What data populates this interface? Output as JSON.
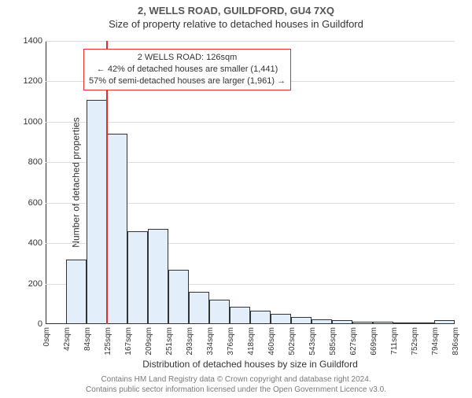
{
  "header": {
    "address": "2, WELLS ROAD, GUILDFORD, GU4 7XQ",
    "subtitle": "Size of property relative to detached houses in Guildford"
  },
  "chart": {
    "type": "histogram",
    "ylabel": "Number of detached properties",
    "xlabel": "Distribution of detached houses by size in Guildford",
    "ylim": [
      0,
      1400
    ],
    "ytick_step": 200,
    "xticks_labels": [
      "0sqm",
      "42sqm",
      "84sqm",
      "125sqm",
      "167sqm",
      "209sqm",
      "251sqm",
      "293sqm",
      "334sqm",
      "376sqm",
      "418sqm",
      "460sqm",
      "502sqm",
      "543sqm",
      "585sqm",
      "627sqm",
      "669sqm",
      "711sqm",
      "752sqm",
      "794sqm",
      "836sqm"
    ],
    "values": [
      0,
      320,
      1110,
      940,
      460,
      470,
      270,
      160,
      120,
      85,
      65,
      50,
      35,
      25,
      20,
      10,
      10,
      8,
      5,
      20
    ],
    "bar_fill": "#e3eefb",
    "bar_border": "#333333",
    "axis_color": "#333333",
    "grid_color": "#dcdcdc",
    "background_color": "#ffffff",
    "marker": {
      "x_value": 126,
      "x_max": 836,
      "color": "#e12f2f"
    },
    "annotation": {
      "line1": "2 WELLS ROAD: 126sqm",
      "line2": "← 42% of detached houses are smaller (1,441)",
      "line3": "57% of semi-detached houses are larger (1,961) →",
      "border_color": "#e12f2f"
    }
  },
  "footer": {
    "line1": "Contains HM Land Registry data © Crown copyright and database right 2024.",
    "line2": "Contains public sector information licensed under the Open Government Licence v3.0."
  }
}
